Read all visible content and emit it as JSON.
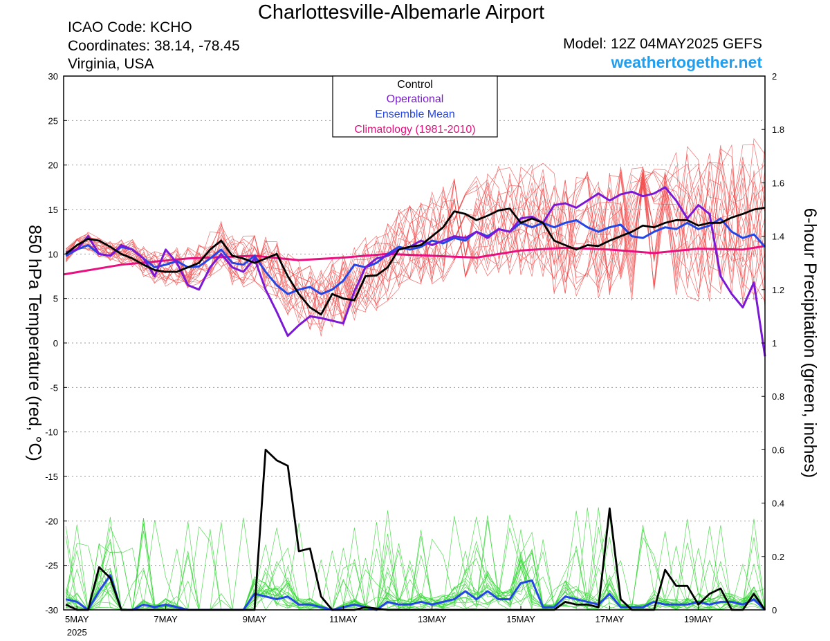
{
  "header": {
    "title": "Charlottesville-Albemarle Airport",
    "icao": "ICAO Code: KCHO",
    "coordinates": "Coordinates: 38.14, -78.45",
    "region": "Virginia, USA",
    "model": "Model: 12Z 04MAY2025 GEFS",
    "site": "weathertogether.net"
  },
  "colors": {
    "control": "#000000",
    "operational": "#7b18d6",
    "ensemble_mean": "#2446e6",
    "climatology": "#e8107e",
    "members_temp": "#f04a4a",
    "members_precip": "#33d633",
    "site": "#1e9ff0"
  },
  "chart_data": {
    "type": "line",
    "ylabel_left": "850 hPa Temperature (red, °C)",
    "ylabel_right": "6-hour Precipitation (green, inches)",
    "ylim_left": [
      -30,
      30
    ],
    "ylim_right": [
      0,
      2
    ],
    "yticks_left": [
      "30",
      "25",
      "20",
      "15",
      "10",
      "5",
      "0",
      "-5",
      "-10",
      "-15",
      "-20",
      "-25",
      "-30"
    ],
    "yticks_right": [
      "2",
      "1.8",
      "1.6",
      "1.4",
      "1.2",
      "1",
      "0.8",
      "0.6",
      "0.4",
      "0.2",
      "0"
    ],
    "x_range_days": [
      4.7,
      20.5
    ],
    "xticks": [
      {
        "day": 5,
        "label": "5MAY",
        "sub": "2025"
      },
      {
        "day": 7,
        "label": "7MAY",
        "sub": ""
      },
      {
        "day": 9,
        "label": "9MAY",
        "sub": ""
      },
      {
        "day": 11,
        "label": "11MAY",
        "sub": ""
      },
      {
        "day": 13,
        "label": "13MAY",
        "sub": ""
      },
      {
        "day": 15,
        "label": "15MAY",
        "sub": ""
      },
      {
        "day": 17,
        "label": "17MAY",
        "sub": ""
      },
      {
        "day": 19,
        "label": "19MAY",
        "sub": ""
      }
    ],
    "grid": true,
    "legend": {
      "placement": "top-center",
      "entries": [
        {
          "label": "Control",
          "color": "#000000"
        },
        {
          "label": "Operational",
          "color": "#7b18d6"
        },
        {
          "label": "Ensemble Mean",
          "color": "#2446e6"
        },
        {
          "label": "Climatology (1981-2010)",
          "color": "#e8107e"
        }
      ]
    },
    "series": [
      {
        "name": "Control",
        "axis": "left",
        "x": [
          4.75,
          5,
          5.25,
          5.5,
          5.75,
          6,
          6.25,
          6.5,
          6.75,
          7,
          7.25,
          7.5,
          7.75,
          8,
          8.25,
          8.5,
          8.75,
          9,
          9.25,
          9.5,
          9.75,
          10,
          10.25,
          10.5,
          10.75,
          11,
          11.25,
          11.5,
          11.75,
          12,
          12.25,
          12.5,
          12.75,
          13,
          13.25,
          13.5,
          13.75,
          14,
          14.25,
          14.5,
          14.75,
          15,
          15.25,
          15.5,
          15.75,
          16,
          16.25,
          16.5,
          16.75,
          17,
          17.25,
          17.5,
          17.75,
          18,
          18.25,
          18.5,
          18.75,
          19,
          19.25,
          19.5,
          19.75,
          20,
          20.25,
          20.5
        ],
        "y": [
          10,
          11,
          11.7,
          11.5,
          10.8,
          10,
          9.5,
          8.8,
          8.2,
          8,
          8,
          8.5,
          9,
          10.5,
          11.5,
          9.8,
          9.5,
          9,
          9.5,
          10,
          7.5,
          5.5,
          4,
          3.2,
          5.5,
          5,
          4.8,
          7.5,
          7.6,
          8.5,
          10.5,
          10.8,
          11,
          12,
          13,
          14.8,
          14.5,
          13.8,
          14.3,
          14.9,
          15.1,
          13.5,
          14,
          13.5,
          11.5,
          11,
          10.5,
          11,
          10.9,
          11.5,
          12,
          12.5,
          13.2,
          13,
          13.5,
          13.8,
          13.8,
          13.2,
          13.5,
          13.5,
          14.1,
          14.5,
          15,
          15.2
        ]
      },
      {
        "name": "Operational",
        "axis": "left",
        "x": [
          4.75,
          5,
          5.25,
          5.5,
          5.75,
          6,
          6.25,
          6.5,
          6.75,
          7,
          7.25,
          7.5,
          7.75,
          8,
          8.25,
          8.5,
          8.75,
          9,
          9.25,
          9.5,
          9.75,
          10,
          10.25,
          10.5,
          10.75,
          11,
          11.25,
          11.5,
          11.75,
          12,
          12.25,
          12.5,
          12.75,
          13,
          13.25,
          13.5,
          13.75,
          14,
          14.25,
          14.5,
          14.75,
          15,
          15.25,
          15.5,
          15.75,
          16,
          16.25,
          16.5,
          16.75,
          17,
          17.25,
          17.5,
          17.75,
          18,
          18.25,
          18.5,
          18.75,
          19,
          19.25,
          19.5,
          19.75,
          20,
          20.25,
          20.5
        ],
        "y": [
          10.2,
          10.5,
          12,
          10,
          9.8,
          11,
          10.5,
          9.5,
          7.5,
          10.5,
          9,
          6.5,
          6,
          8.5,
          10,
          8.5,
          8,
          9.5,
          6,
          3.5,
          0.8,
          2,
          3,
          2.8,
          2.5,
          2.2,
          5.8,
          8.5,
          9.5,
          9.8,
          10.5,
          10.8,
          11.5,
          11,
          11.5,
          12,
          11.8,
          12.5,
          11.8,
          12.8,
          12.5,
          14,
          14.2,
          13.5,
          15.5,
          15.7,
          15.2,
          16,
          16.8,
          16,
          16.7,
          17,
          16.5,
          16.8,
          17.5,
          16,
          14,
          15.5,
          14.5,
          7.5,
          5.5,
          4,
          6.8,
          -1.5
        ]
      },
      {
        "name": "Ensemble Mean",
        "axis": "left",
        "x": [
          4.75,
          5,
          5.25,
          5.5,
          5.75,
          6,
          6.25,
          6.5,
          6.75,
          7,
          7.25,
          7.5,
          7.75,
          8,
          8.25,
          8.5,
          8.75,
          9,
          9.25,
          9.5,
          9.75,
          10,
          10.25,
          10.5,
          10.75,
          11,
          11.25,
          11.5,
          11.75,
          12,
          12.25,
          12.5,
          12.75,
          13,
          13.25,
          13.5,
          13.75,
          14,
          14.25,
          14.5,
          14.75,
          15,
          15.25,
          15.5,
          15.75,
          16,
          16.25,
          16.5,
          16.75,
          17,
          17.25,
          17.5,
          17.75,
          18,
          18.25,
          18.5,
          18.75,
          19,
          19.25,
          19.5,
          19.75,
          20,
          20.25,
          20.5
        ],
        "y": [
          9.8,
          10.5,
          11,
          10,
          9.8,
          10.8,
          10.5,
          9.5,
          8.5,
          8.8,
          9.2,
          8.5,
          8.6,
          9.5,
          10.5,
          9,
          8.8,
          9.8,
          8,
          6.5,
          5.5,
          6,
          6.3,
          5.5,
          6,
          7,
          8.8,
          8.5,
          9,
          10,
          10.8,
          10.5,
          10.8,
          11.5,
          11.2,
          11.8,
          11.5,
          12.5,
          12,
          12.8,
          12.5,
          13.5,
          13,
          13.5,
          13,
          13.5,
          13.8,
          13,
          12.5,
          13,
          13.3,
          12,
          11.8,
          12.5,
          13,
          12.8,
          13.5,
          12.8,
          13.2,
          14,
          12.5,
          11.8,
          12.2,
          10.8
        ]
      },
      {
        "name": "Climatology (1981-2010)",
        "axis": "left",
        "x": [
          4.7,
          6,
          7.5,
          9,
          10,
          11,
          12,
          13,
          14,
          15,
          16,
          17,
          18,
          19,
          20,
          20.5
        ],
        "y": [
          7.7,
          8.8,
          9.5,
          9.8,
          9.3,
          9.6,
          10,
          9.8,
          9.6,
          10.4,
          10.7,
          10.5,
          10.1,
          10.6,
          10.5,
          10.9
        ]
      },
      {
        "name": "Control",
        "axis": "right",
        "x": [
          4.75,
          5,
          5.25,
          5.5,
          5.75,
          6,
          6.25,
          6.5,
          6.75,
          7,
          7.5,
          8,
          8.5,
          9,
          9.25,
          9.5,
          9.75,
          10,
          10.25,
          10.5,
          10.75,
          11,
          11.25,
          11.5,
          12,
          13,
          14,
          15,
          15.25,
          15.5,
          15.75,
          16,
          16.25,
          16.5,
          16.75,
          17,
          17.25,
          17.5,
          17.75,
          18,
          18.25,
          18.5,
          18.75,
          19,
          19.25,
          19.5,
          19.75,
          20,
          20.25,
          20.5
        ],
        "y": [
          0.02,
          0,
          0,
          0.16,
          0.12,
          0,
          0,
          0,
          0,
          0,
          0,
          0,
          0,
          0,
          0.6,
          0.56,
          0.54,
          0.22,
          0.23,
          0.05,
          0,
          0,
          0,
          0.01,
          0,
          0,
          0,
          0,
          0,
          0,
          0,
          0.03,
          0.02,
          0.02,
          0.01,
          0.38,
          0.04,
          0,
          0,
          0,
          0.15,
          0.09,
          0.09,
          0.02,
          0.06,
          0.08,
          0,
          0,
          0.06,
          0
        ]
      },
      {
        "name": "Ensemble Mean",
        "axis": "right",
        "x": [
          4.75,
          5,
          5.25,
          5.5,
          5.75,
          6,
          6.25,
          6.5,
          6.75,
          7,
          7.25,
          7.5,
          7.75,
          8,
          8.25,
          8.5,
          8.75,
          9,
          9.25,
          9.5,
          9.75,
          10,
          10.25,
          10.5,
          10.75,
          11,
          11.25,
          11.5,
          11.75,
          12,
          12.25,
          12.5,
          12.75,
          13,
          13.25,
          13.5,
          13.75,
          14,
          14.25,
          14.5,
          14.75,
          15,
          15.25,
          15.5,
          15.75,
          16,
          16.25,
          16.5,
          16.75,
          17,
          17.25,
          17.5,
          17.75,
          18,
          18.25,
          18.5,
          18.75,
          19,
          19.25,
          19.5,
          19.75,
          20,
          20.25,
          20.5
        ],
        "y": [
          0.04,
          0.03,
          0,
          0.07,
          0.13,
          0,
          0,
          0.02,
          0.01,
          0.02,
          0.01,
          0,
          0,
          0,
          0,
          0,
          0,
          0.06,
          0.05,
          0.04,
          0.05,
          0.02,
          0.02,
          0.01,
          0,
          0.01,
          0.02,
          0.01,
          0,
          0.03,
          0.02,
          0.02,
          0.03,
          0.02,
          0.03,
          0.04,
          0.07,
          0.04,
          0.07,
          0.04,
          0.04,
          0.1,
          0.11,
          0.01,
          0.01,
          0.05,
          0.04,
          0.03,
          0.02,
          0.06,
          0.01,
          0.01,
          0.01,
          0.03,
          0.02,
          0.02,
          0.02,
          0.03,
          0.02,
          0.03,
          0.03,
          0.02,
          0.04,
          0
        ]
      }
    ]
  }
}
